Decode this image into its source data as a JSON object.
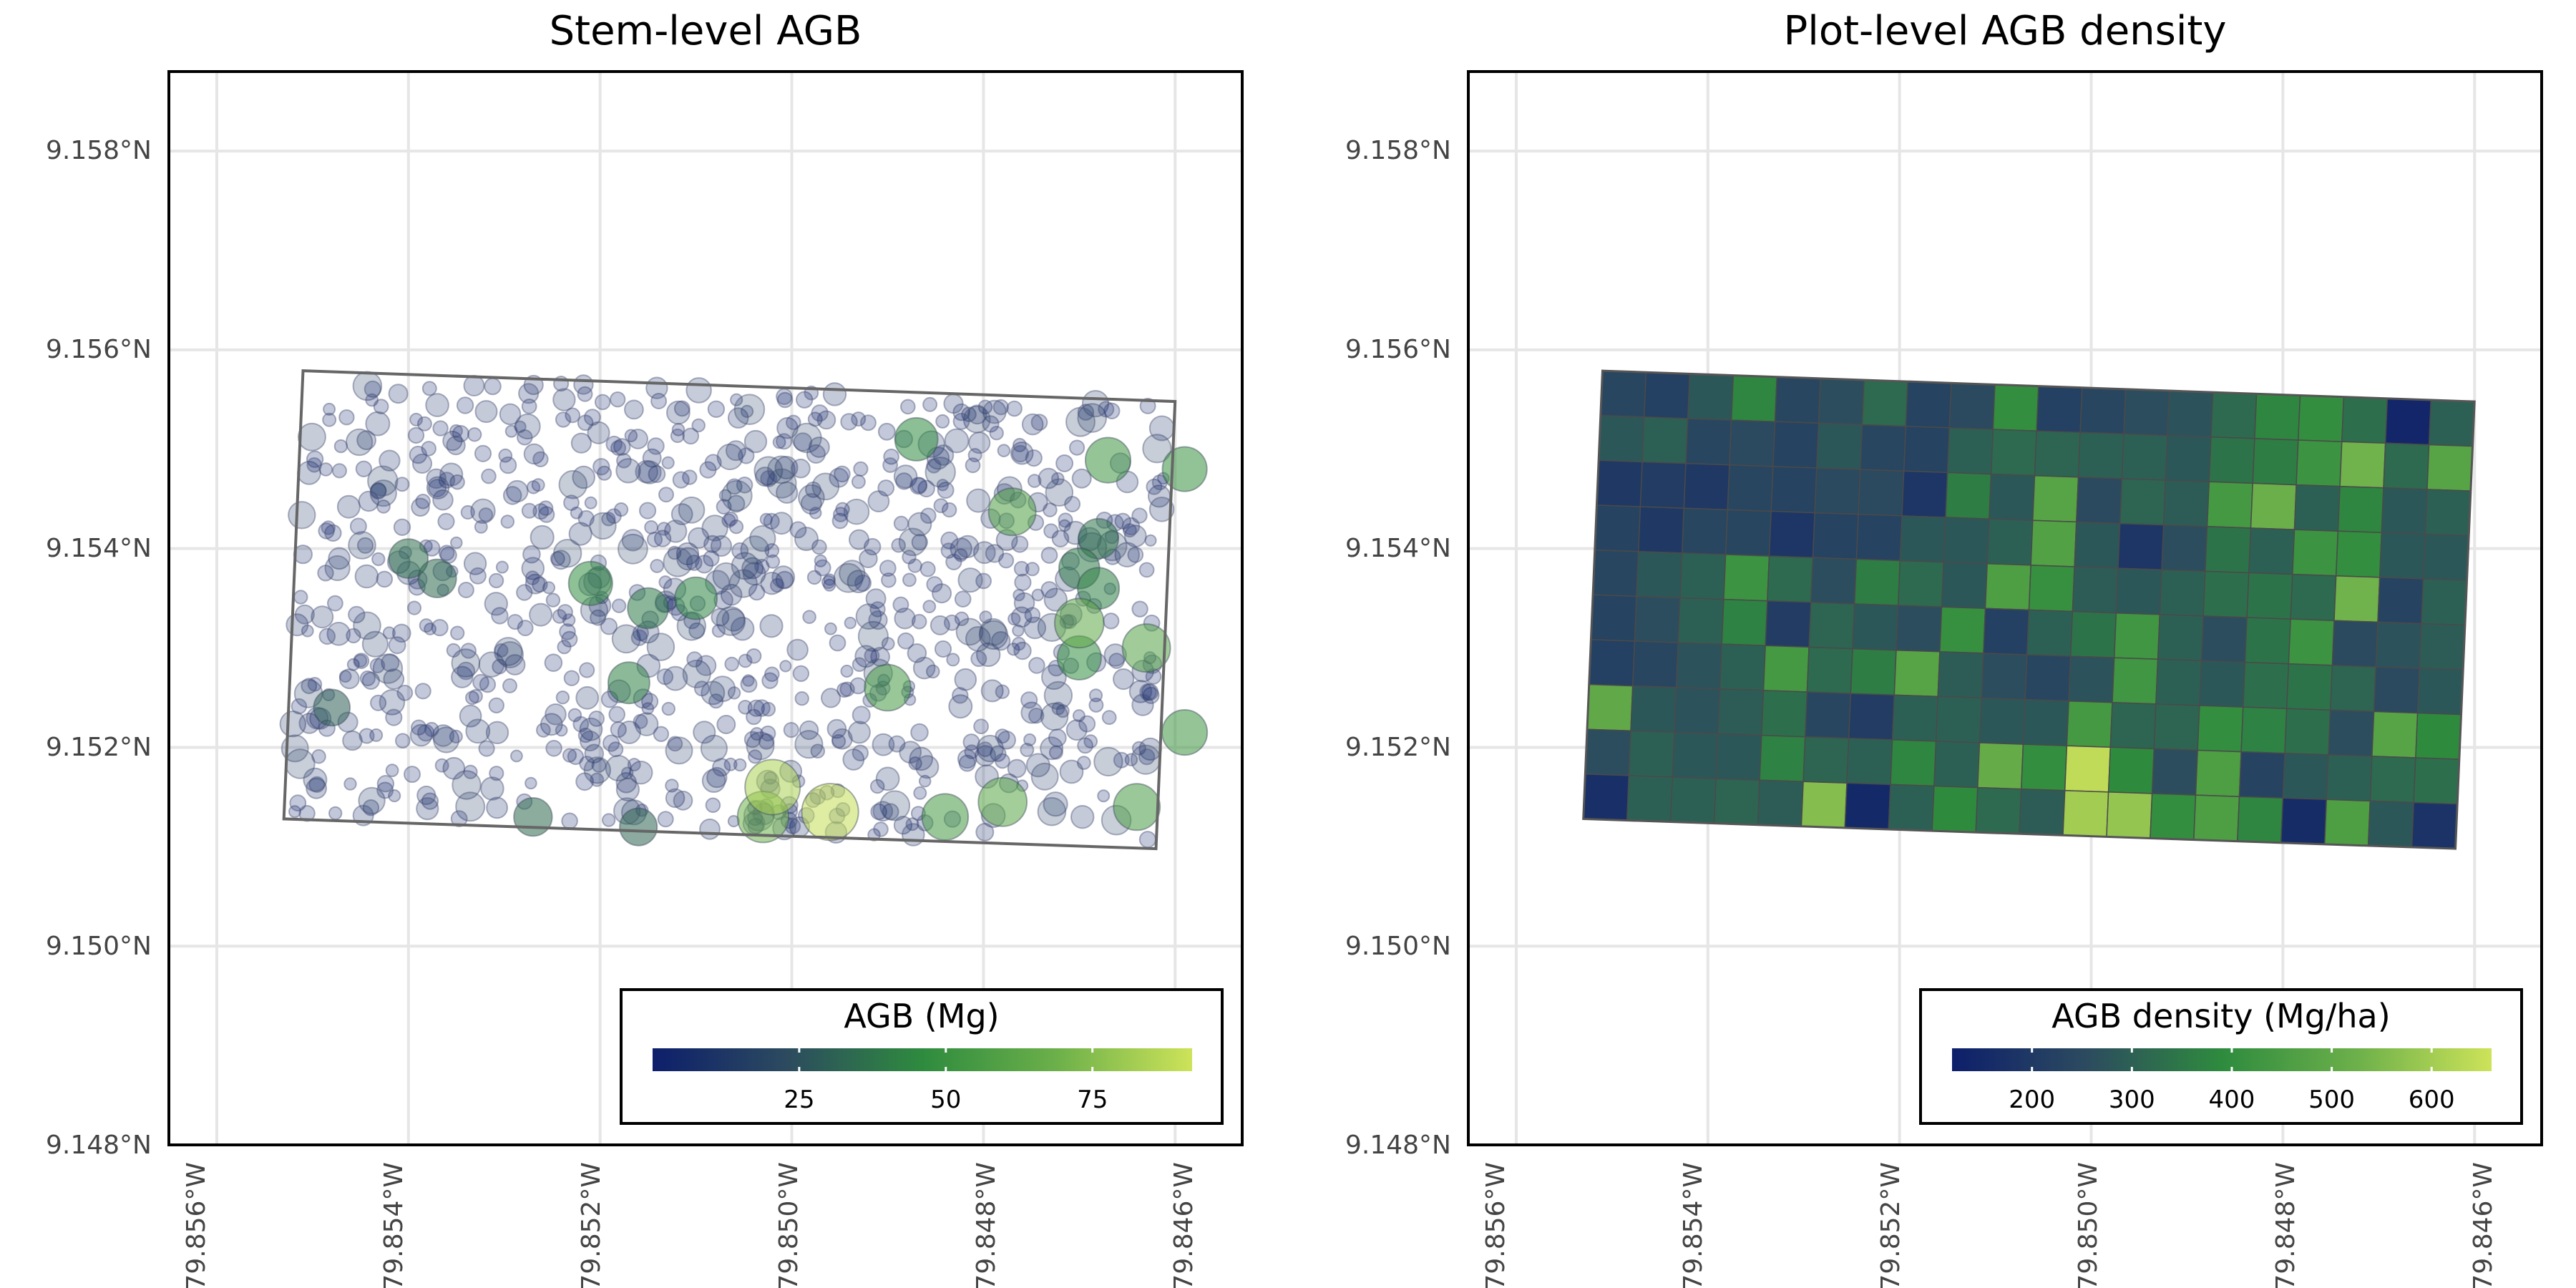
{
  "chart_data": [
    {
      "type": "scatter",
      "title": "Stem-level AGB",
      "x_ticks": [
        "79.856°W",
        "79.854°W",
        "79.852°W",
        "79.850°W",
        "79.848°W",
        "79.846°W"
      ],
      "y_ticks": [
        "9.148°N",
        "9.150°N",
        "9.152°N",
        "9.154°N",
        "9.156°N",
        "9.158°N"
      ],
      "xlim": [
        -79.8565,
        -79.8453
      ],
      "ylim": [
        9.148,
        9.1588
      ],
      "plot_polygon": [
        [
          -79.8551,
          9.15579
        ],
        [
          -79.846,
          9.15548
        ],
        [
          -79.8462,
          9.15098
        ],
        [
          -79.8553,
          9.15128
        ]
      ],
      "grid": true,
      "legend": {
        "title": "AGB (Mg)",
        "type": "colorbar",
        "range": [
          0,
          92
        ],
        "ticks": [
          25,
          50,
          75
        ],
        "placement": "bottom-right"
      },
      "highlighted_stems": [
        {
          "lon": -79.8502,
          "lat": 9.1516,
          "agb": 84
        },
        {
          "lon": -79.8496,
          "lat": 9.15135,
          "agb": 90
        },
        {
          "lon": -79.8503,
          "lat": 9.1513,
          "agb": 70
        },
        {
          "lon": -79.849,
          "lat": 9.1526,
          "agb": 55
        },
        {
          "lon": -79.8478,
          "lat": 9.15145,
          "agb": 62
        },
        {
          "lon": -79.8484,
          "lat": 9.1513,
          "agb": 55
        },
        {
          "lon": -79.8477,
          "lat": 9.15437,
          "agb": 58
        },
        {
          "lon": -79.847,
          "lat": 9.15325,
          "agb": 64
        },
        {
          "lon": -79.8467,
          "lat": 9.15489,
          "agb": 52
        },
        {
          "lon": -79.8463,
          "lat": 9.153,
          "agb": 60
        },
        {
          "lon": -79.8459,
          "lat": 9.1548,
          "agb": 50
        },
        {
          "lon": -79.8464,
          "lat": 9.1514,
          "agb": 56
        },
        {
          "lon": -79.8459,
          "lat": 9.15215,
          "agb": 52
        },
        {
          "lon": -79.847,
          "lat": 9.1529,
          "agb": 48
        },
        {
          "lon": -79.8487,
          "lat": 9.1551,
          "agb": 46
        },
        {
          "lon": -79.8521,
          "lat": 9.15365,
          "agb": 48
        },
        {
          "lon": -79.851,
          "lat": 9.1535,
          "agb": 44
        },
        {
          "lon": -79.8515,
          "lat": 9.1534,
          "agb": 40
        },
        {
          "lon": -79.8517,
          "lat": 9.15265,
          "agb": 42
        },
        {
          "lon": -79.8527,
          "lat": 9.1513,
          "agb": 34
        },
        {
          "lon": -79.8516,
          "lat": 9.1512,
          "agb": 32
        },
        {
          "lon": -79.854,
          "lat": 9.1539,
          "agb": 36
        },
        {
          "lon": -79.8537,
          "lat": 9.1537,
          "agb": 34
        },
        {
          "lon": -79.8548,
          "lat": 9.1524,
          "agb": 30
        },
        {
          "lon": -79.8468,
          "lat": 9.1536,
          "agb": 42
        },
        {
          "lon": -79.847,
          "lat": 9.1538,
          "agb": 40
        },
        {
          "lon": -79.8468,
          "lat": 9.1541,
          "agb": 38
        }
      ]
    },
    {
      "type": "heatmap",
      "title": "Plot-level AGB density",
      "x_ticks": [
        "79.856°W",
        "79.854°W",
        "79.852°W",
        "79.850°W",
        "79.848°W",
        "79.846°W"
      ],
      "y_ticks": [
        "9.148°N",
        "9.150°N",
        "9.152°N",
        "9.154°N",
        "9.156°N",
        "9.158°N"
      ],
      "xlim": [
        -79.8565,
        -79.8453
      ],
      "ylim": [
        9.148,
        9.1588
      ],
      "plot_polygon": [
        [
          -79.8551,
          9.15579
        ],
        [
          -79.846,
          9.15548
        ],
        [
          -79.8462,
          9.15098
        ],
        [
          -79.8553,
          9.15128
        ]
      ],
      "grid": true,
      "cols": 20,
      "rows": 10,
      "values": [
        [
          240,
          220,
          280,
          380,
          240,
          260,
          320,
          230,
          250,
          400,
          220,
          240,
          260,
          270,
          320,
          380,
          400,
          330,
          140,
          300
        ],
        [
          280,
          300,
          240,
          250,
          230,
          280,
          240,
          230,
          300,
          320,
          310,
          300,
          300,
          280,
          340,
          360,
          420,
          530,
          320,
          480
        ],
        [
          200,
          210,
          200,
          240,
          230,
          250,
          250,
          190,
          360,
          280,
          480,
          250,
          310,
          290,
          440,
          520,
          300,
          380,
          280,
          300
        ],
        [
          230,
          200,
          240,
          240,
          190,
          230,
          230,
          280,
          280,
          300,
          470,
          280,
          190,
          260,
          340,
          300,
          420,
          400,
          280,
          280
        ],
        [
          240,
          280,
          300,
          420,
          320,
          260,
          360,
          320,
          280,
          460,
          410,
          290,
          280,
          300,
          330,
          340,
          320,
          530,
          230,
          300
        ],
        [
          230,
          260,
          300,
          370,
          210,
          310,
          280,
          260,
          410,
          220,
          300,
          340,
          430,
          300,
          260,
          340,
          420,
          250,
          270,
          290
        ],
        [
          220,
          240,
          270,
          300,
          440,
          320,
          360,
          480,
          290,
          260,
          240,
          270,
          430,
          300,
          280,
          330,
          340,
          310,
          250,
          280
        ],
        [
          500,
          280,
          270,
          290,
          330,
          240,
          210,
          300,
          300,
          280,
          280,
          440,
          310,
          310,
          400,
          370,
          330,
          260,
          480,
          390
        ],
        [
          260,
          300,
          280,
          280,
          370,
          310,
          300,
          380,
          300,
          510,
          400,
          640,
          390,
          260,
          460,
          230,
          280,
          300,
          320,
          330
        ],
        [
          170,
          300,
          300,
          310,
          290,
          560,
          150,
          300,
          390,
          320,
          290,
          600,
          580,
          400,
          460,
          380,
          160,
          460,
          280,
          180
        ]
      ],
      "legend": {
        "title": "AGB density (Mg/ha)",
        "type": "colorbar",
        "range": [
          120,
          660
        ],
        "ticks": [
          200,
          300,
          400,
          500,
          600
        ],
        "placement": "bottom-right"
      }
    }
  ]
}
